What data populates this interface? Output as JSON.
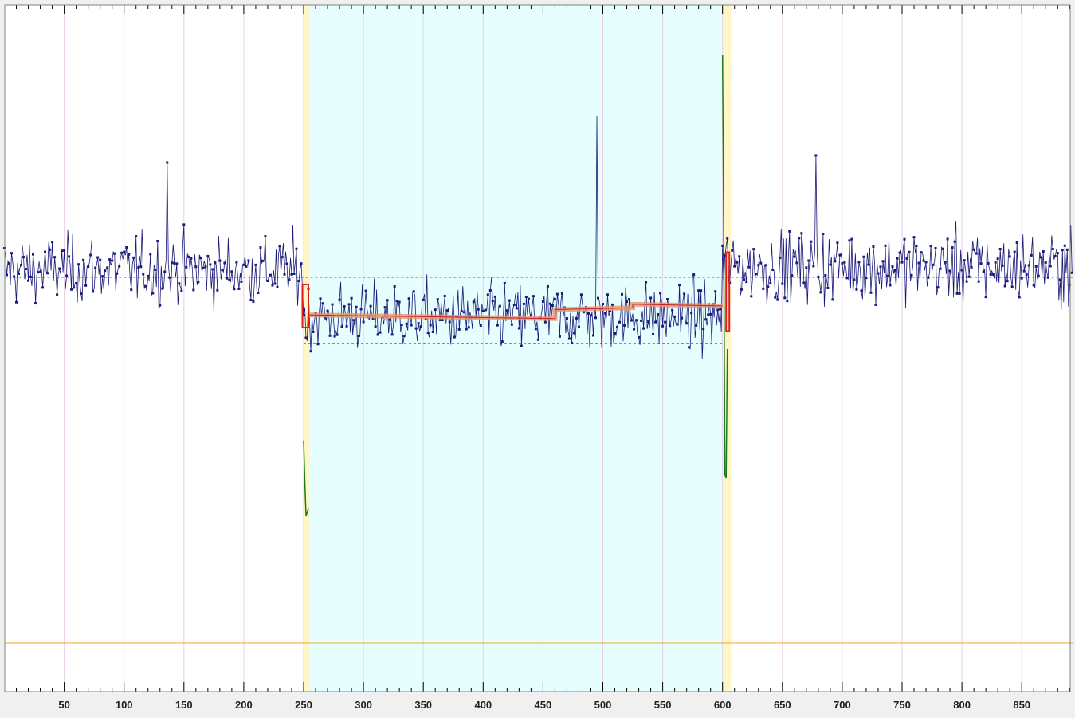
{
  "chart_data": {
    "type": "line",
    "title": "",
    "xlabel": "",
    "ylabel": "",
    "xlim": [
      0,
      893
    ],
    "ylim": [
      -1.0,
      1.0
    ],
    "x_ticks": [
      50,
      100,
      150,
      200,
      250,
      300,
      350,
      400,
      450,
      500,
      550,
      600,
      650,
      700,
      750,
      800,
      850
    ],
    "x_tick_labels": [
      "50",
      "100",
      "150",
      "200",
      "250",
      "300",
      "350",
      "400",
      "450",
      "500",
      "550",
      "600",
      "650",
      "700",
      "750",
      "800",
      "850"
    ],
    "grid": "vertical",
    "highlighted_region": {
      "x_start": 255,
      "x_end": 600,
      "color": "#e6fffe"
    },
    "transition_bands": [
      {
        "x_start": 250,
        "x_end": 255,
        "color": "#fff7c8"
      },
      {
        "x_start": 600,
        "x_end": 607,
        "color": "#fff7c8"
      }
    ],
    "reference_lines": [
      {
        "y": 0.0,
        "style": "dashed",
        "color": "#5a6a7a",
        "x_start": 0,
        "x_end": 893
      },
      {
        "y": -0.185,
        "style": "dashed",
        "color": "#5a6a7a",
        "x_start": 250,
        "x_end": 600
      },
      {
        "y": -1.02,
        "style": "solid",
        "color": "#f5a623",
        "x_start": 0,
        "x_end": 893
      }
    ],
    "series": [
      {
        "role": "signal",
        "color": "#1a1a7a",
        "marker": "square",
        "segments": [
          {
            "x_start": 0,
            "x_end": 250,
            "mean": 0.02,
            "sd": 0.065
          },
          {
            "x_start": 250,
            "x_end": 600,
            "mean": -0.11,
            "sd": 0.065
          },
          {
            "x_start": 600,
            "x_end": 893,
            "mean": 0.03,
            "sd": 0.07
          }
        ],
        "peaks": [
          {
            "x": 495,
            "y": 0.45
          },
          {
            "x": 136,
            "y": 0.32
          },
          {
            "x": 678,
            "y": 0.34
          }
        ]
      },
      {
        "role": "fitted-step",
        "color": "#e8956b",
        "points": [
          [
            254,
            -0.105
          ],
          [
            460,
            -0.115
          ],
          [
            460,
            -0.09
          ],
          [
            525,
            -0.085
          ],
          [
            525,
            -0.075
          ],
          [
            600,
            -0.08
          ]
        ]
      },
      {
        "role": "transition-markers",
        "color": "#e02020",
        "points": [
          [
            249,
            -0.02
          ],
          [
            254,
            -0.14
          ],
          [
            603,
            0.07
          ],
          [
            605,
            -0.15
          ]
        ]
      },
      {
        "role": "derivative",
        "color": "#1e7a1e",
        "points": [
          [
            250,
            -0.455
          ],
          [
            251,
            -0.57
          ],
          [
            252,
            -0.665
          ],
          [
            253,
            -0.655
          ],
          [
            254,
            -0.645
          ],
          [
            600,
            0.62
          ],
          [
            601,
            0.1
          ],
          [
            602,
            -0.55
          ],
          [
            603,
            -0.56
          ],
          [
            604,
            -0.2
          ]
        ]
      }
    ]
  }
}
